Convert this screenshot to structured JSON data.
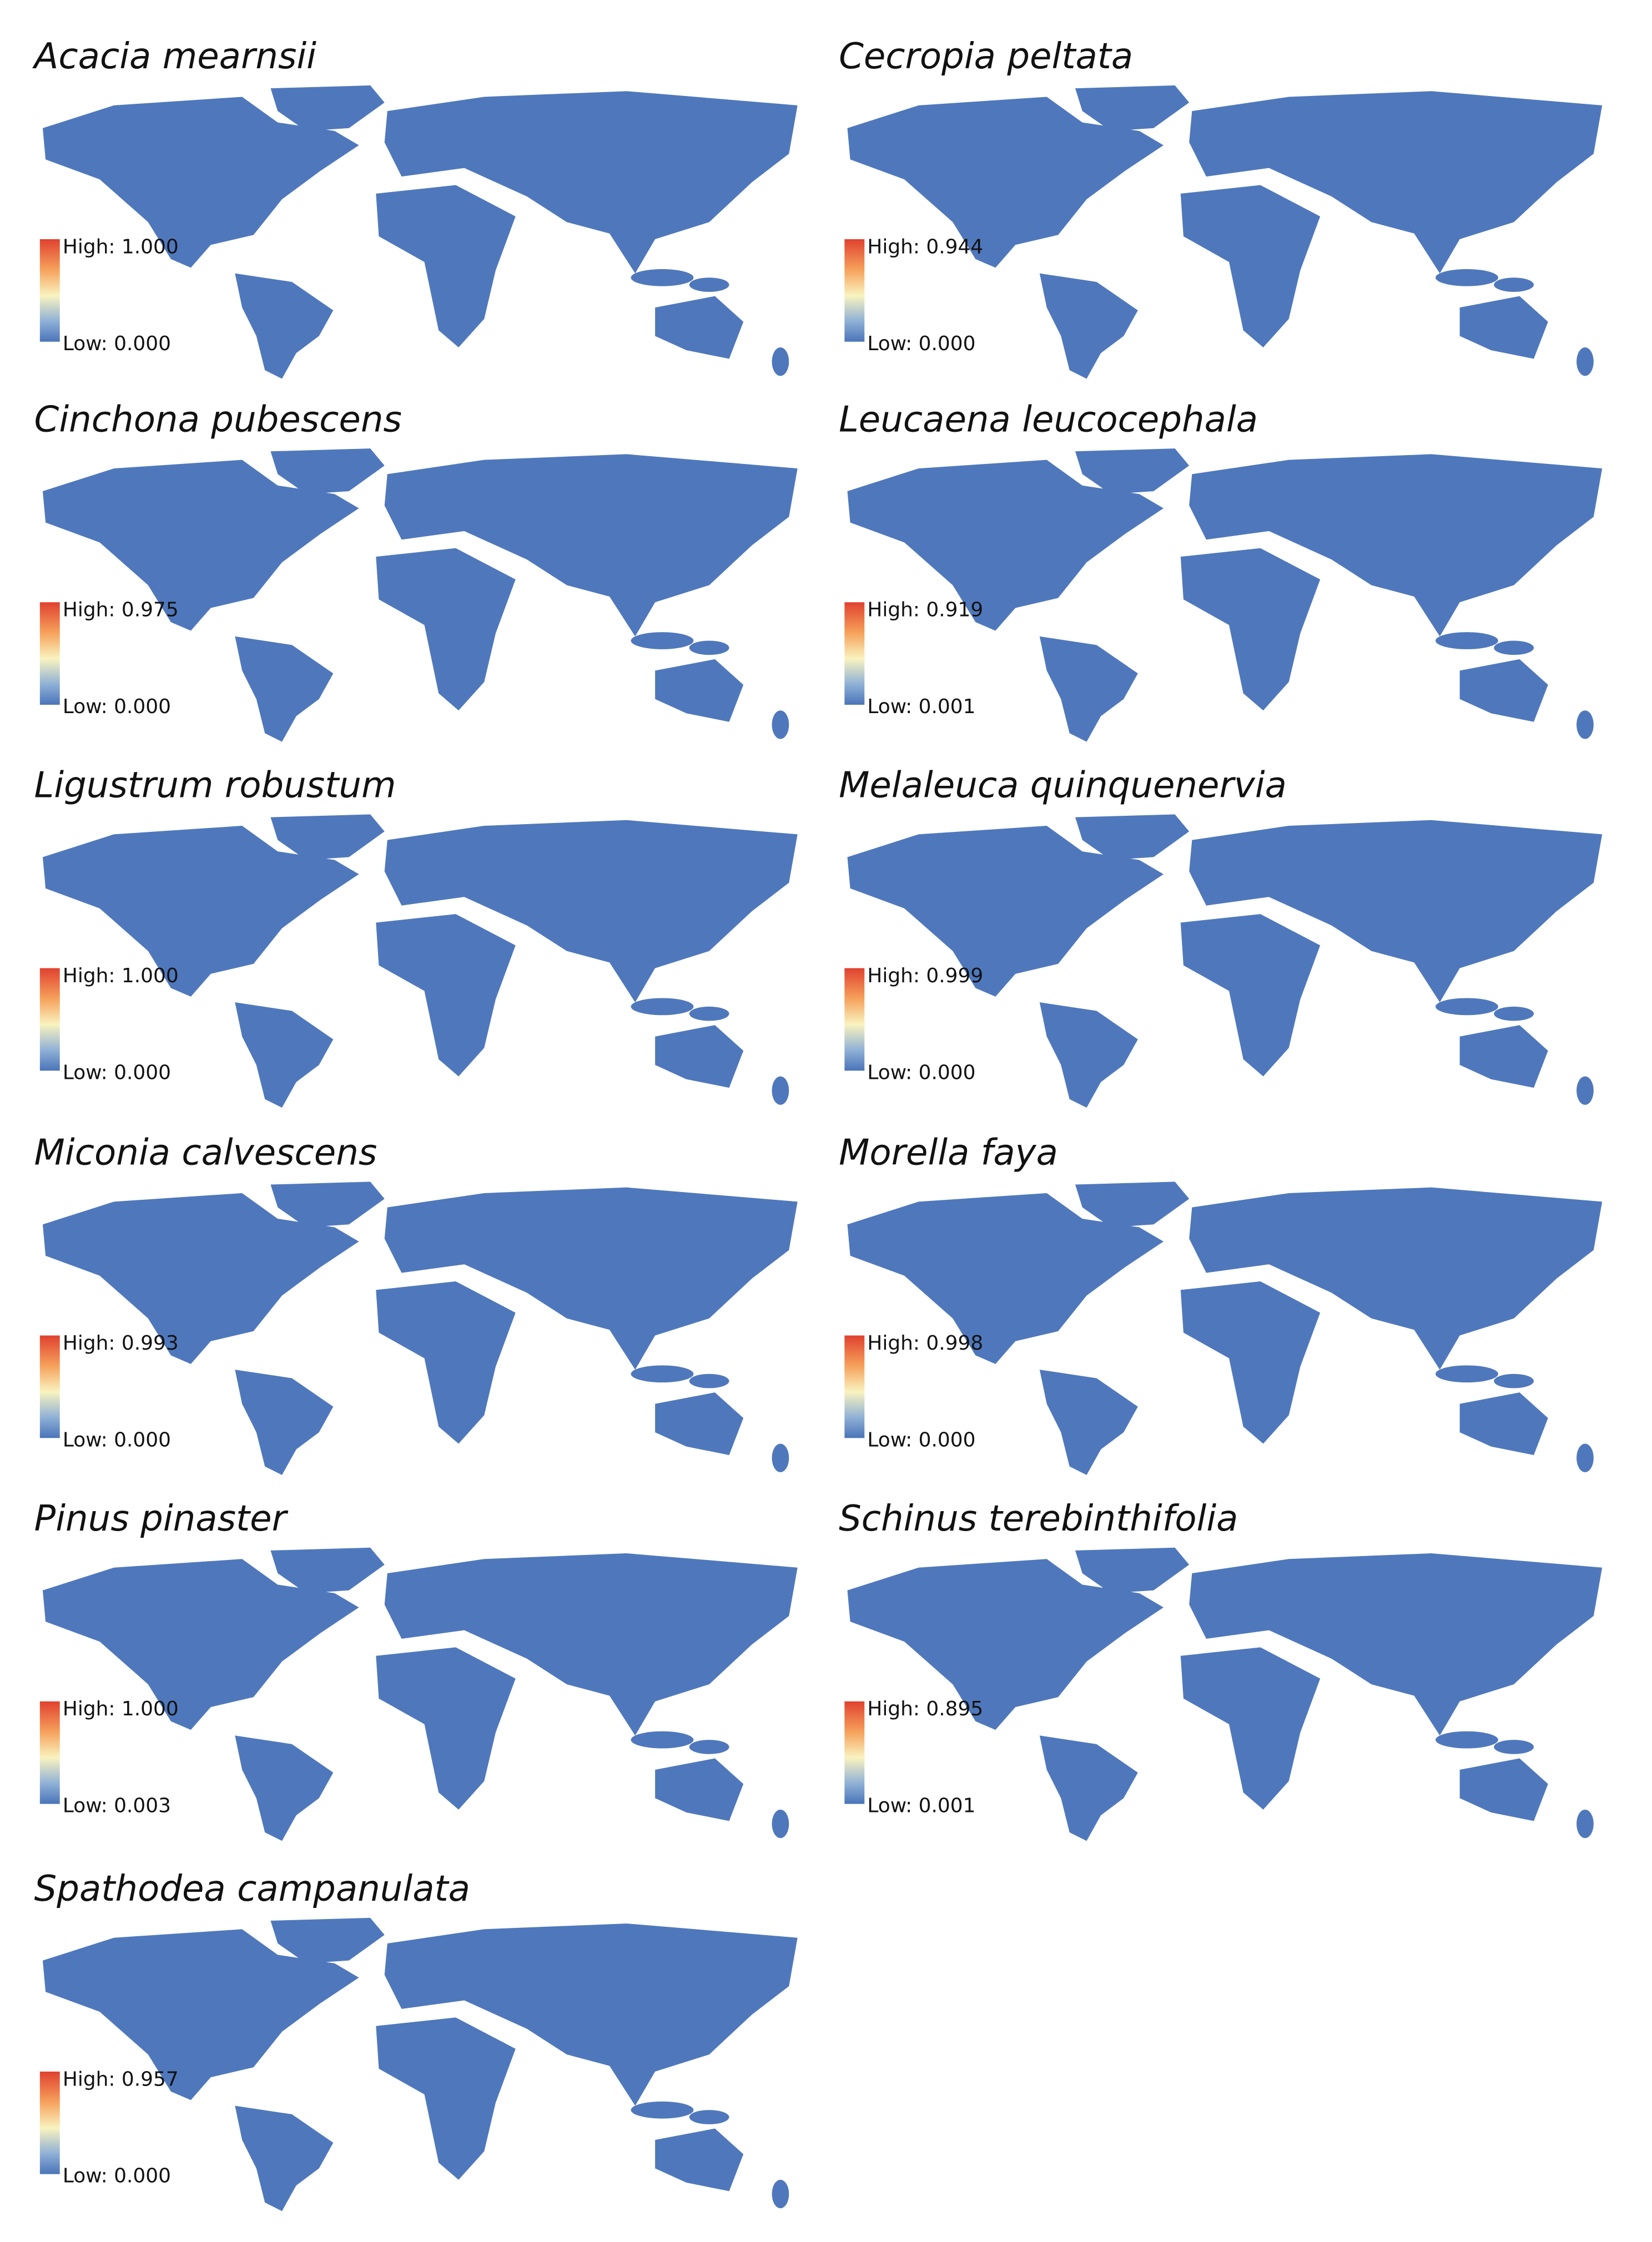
{
  "panels": [
    {
      "title": "Acacia mearnsii",
      "high_label": "High: 1.000",
      "low_label": "Low: 0.000"
    },
    {
      "title": "Cecropia peltata",
      "high_label": "High: 0.944",
      "low_label": "Low: 0.000"
    },
    {
      "title": "Cinchona pubescens",
      "high_label": "High: 0.975",
      "low_label": "Low: 0.000"
    },
    {
      "title": "Leucaena leucocephala",
      "high_label": "High: 0.919",
      "low_label": "Low: 0.001"
    },
    {
      "title": "Ligustrum robustum",
      "high_label": "High: 1.000",
      "low_label": "Low: 0.000"
    },
    {
      "title": "Melaleuca quinquenervia",
      "high_label": "High: 0.999",
      "low_label": "Low: 0.000"
    },
    {
      "title": "Miconia calvescens",
      "high_label": "High: 0.993",
      "low_label": "Low: 0.000"
    },
    {
      "title": "Morella faya",
      "high_label": "High: 0.998",
      "low_label": "Low: 0.000"
    },
    {
      "title": "Pinus pinaster",
      "high_label": "High: 1.000",
      "low_label": "Low: 0.003"
    },
    {
      "title": "Schinus terebinthifolia",
      "high_label": "High: 0.895",
      "low_label": "Low: 0.001"
    },
    {
      "title": "Spathodea campanulata",
      "high_label": "High: 0.957",
      "low_label": "Low: 0.000"
    }
  ]
}
